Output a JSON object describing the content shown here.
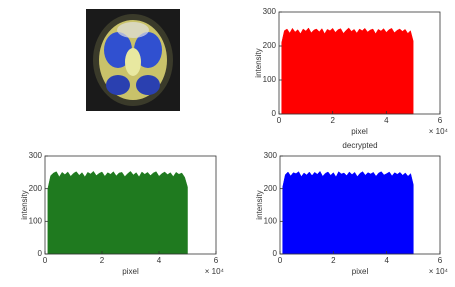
{
  "chart_data": [
    {
      "type": "area",
      "ylabel": "intensity",
      "xlabel": "pixel",
      "x_multiplier": "× 10⁴",
      "xlim": [
        0,
        6
      ],
      "ylim": [
        0,
        300
      ],
      "xticks": [
        0,
        2,
        4,
        6
      ],
      "yticks": [
        0,
        100,
        200,
        300
      ],
      "x": [
        0.1,
        0.2,
        0.3,
        0.4,
        0.5,
        0.6,
        0.7,
        0.8,
        0.9,
        1.0,
        1.1,
        1.2,
        1.3,
        1.4,
        1.5,
        1.6,
        1.7,
        1.8,
        1.9,
        2.0,
        2.1,
        2.2,
        2.3,
        2.4,
        2.5,
        2.6,
        2.7,
        2.8,
        2.9,
        3.0,
        3.1,
        3.2,
        3.3,
        3.4,
        3.5,
        3.6,
        3.7,
        3.8,
        3.9,
        4.0,
        4.1,
        4.2,
        4.3,
        4.4,
        4.5,
        4.6,
        4.7,
        4.8,
        4.9,
        5.0
      ],
      "series": [
        {
          "color": "#ff0000",
          "values": [
            210,
            245,
            250,
            238,
            252,
            241,
            248,
            236,
            250,
            244,
            253,
            239,
            247,
            250,
            242,
            251,
            236,
            249,
            245,
            252,
            240,
            248,
            251,
            237,
            246,
            253,
            243,
            249,
            238,
            250,
            245,
            252,
            241,
            247,
            250,
            236,
            249,
            244,
            251,
            240,
            248,
            252,
            239,
            246,
            250,
            243,
            249,
            237,
            245,
            215
          ]
        }
      ]
    },
    {
      "type": "area",
      "ylabel": "intensity",
      "xlabel": "pixel",
      "x_multiplier": "× 10⁴",
      "xlim": [
        0,
        6
      ],
      "ylim": [
        0,
        300
      ],
      "xticks": [
        0,
        2,
        4,
        6
      ],
      "yticks": [
        0,
        100,
        200,
        300
      ],
      "x": [
        0.1,
        0.2,
        0.3,
        0.4,
        0.5,
        0.6,
        0.7,
        0.8,
        0.9,
        1.0,
        1.1,
        1.2,
        1.3,
        1.4,
        1.5,
        1.6,
        1.7,
        1.8,
        1.9,
        2.0,
        2.1,
        2.2,
        2.3,
        2.4,
        2.5,
        2.6,
        2.7,
        2.8,
        2.9,
        3.0,
        3.1,
        3.2,
        3.3,
        3.4,
        3.5,
        3.6,
        3.7,
        3.8,
        3.9,
        4.0,
        4.1,
        4.2,
        4.3,
        4.4,
        4.5,
        4.6,
        4.7,
        4.8,
        4.9,
        5.0
      ],
      "series": [
        {
          "color": "#1f7a1f",
          "values": [
            200,
            240,
            248,
            252,
            236,
            250,
            243,
            251,
            238,
            247,
            252,
            241,
            249,
            236,
            250,
            245,
            253,
            240,
            247,
            251,
            238,
            249,
            244,
            252,
            239,
            248,
            250,
            237,
            246,
            253,
            242,
            249,
            236,
            251,
            244,
            250,
            240,
            248,
            252,
            238,
            246,
            251,
            243,
            249,
            237,
            250,
            244,
            248,
            235,
            205
          ]
        }
      ]
    },
    {
      "type": "area",
      "title": "decrypted",
      "ylabel": "intensity",
      "xlabel": "pixel",
      "x_multiplier": "× 10⁴",
      "xlim": [
        0,
        6
      ],
      "ylim": [
        0,
        300
      ],
      "xticks": [
        0,
        2,
        4,
        6
      ],
      "yticks": [
        0,
        100,
        200,
        300
      ],
      "x": [
        0.1,
        0.2,
        0.3,
        0.4,
        0.5,
        0.6,
        0.7,
        0.8,
        0.9,
        1.0,
        1.1,
        1.2,
        1.3,
        1.4,
        1.5,
        1.6,
        1.7,
        1.8,
        1.9,
        2.0,
        2.1,
        2.2,
        2.3,
        2.4,
        2.5,
        2.6,
        2.7,
        2.8,
        2.9,
        3.0,
        3.1,
        3.2,
        3.3,
        3.4,
        3.5,
        3.6,
        3.7,
        3.8,
        3.9,
        4.0,
        4.1,
        4.2,
        4.3,
        4.4,
        4.5,
        4.6,
        4.7,
        4.8,
        4.9,
        5.0
      ],
      "series": [
        {
          "color": "#0000ff",
          "values": [
            205,
            243,
            251,
            239,
            249,
            246,
            252,
            237,
            248,
            242,
            251,
            240,
            250,
            244,
            253,
            238,
            247,
            251,
            241,
            249,
            236,
            252,
            245,
            248,
            240,
            251,
            243,
            250,
            237,
            247,
            252,
            241,
            249,
            245,
            250,
            238,
            248,
            252,
            242,
            246,
            251,
            239,
            249,
            244,
            250,
            241,
            248,
            238,
            246,
            212
          ]
        }
      ]
    }
  ]
}
